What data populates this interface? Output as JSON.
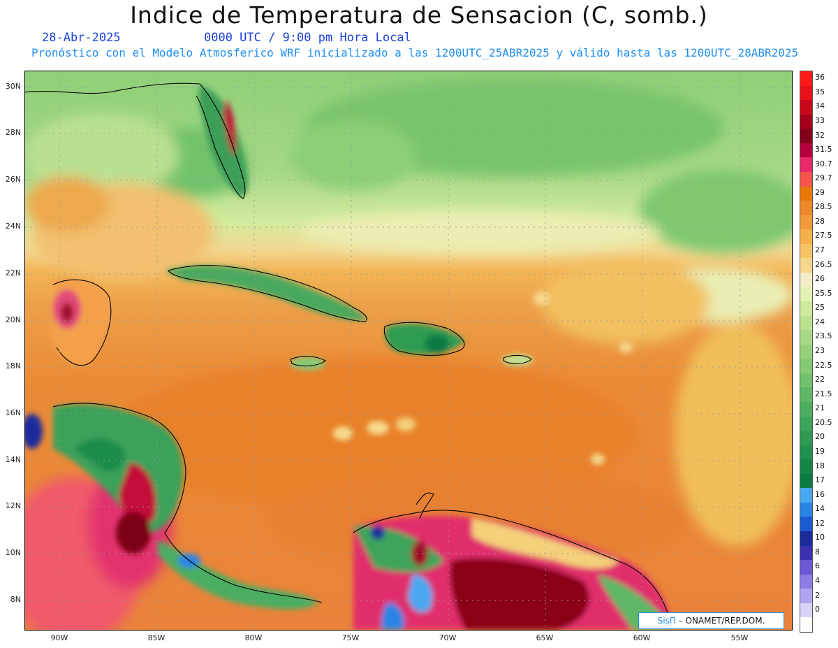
{
  "header": {
    "title": "Indice de Temperatura de Sensacion (C, somb.)",
    "date": "28-Abr-2025",
    "time": "0000 UTC / 9:00 pm Hora Local",
    "subtitle": "Pronóstico con el Modelo Atmosferico WRF inicializado a las 1200UTC_25ABR2025 y válido hasta las  1200UTC_28ABR2025"
  },
  "map": {
    "lat_labels": [
      "30N",
      "28N",
      "26N",
      "24N",
      "22N",
      "20N",
      "18N",
      "16N",
      "14N",
      "12N",
      "10N",
      "8N"
    ],
    "lon_labels": [
      "90W",
      "85W",
      "80W",
      "75W",
      "70W",
      "65W",
      "60W",
      "55W"
    ],
    "palette": {
      "ocean_warm": "#e9883a",
      "ocean_mid": "#f0a24c",
      "cool_north": "#9ed47a",
      "green_dark": "#2e9c52",
      "hot_pink": "#e8327a",
      "hot_red": "#9a0a1e",
      "yellow": "#f6e6a0"
    }
  },
  "colorbar": {
    "levels": [
      {
        "label": "36",
        "color": "#ff1a1a"
      },
      {
        "label": "35",
        "color": "#e8121a"
      },
      {
        "label": "34",
        "color": "#c8081a"
      },
      {
        "label": "33",
        "color": "#a4001a"
      },
      {
        "label": "32",
        "color": "#84001a"
      },
      {
        "label": "31.5",
        "color": "#b4003c"
      },
      {
        "label": "30.7",
        "color": "#e82a6a"
      },
      {
        "label": "29.7",
        "color": "#f4544a"
      },
      {
        "label": "29",
        "color": "#e8780a"
      },
      {
        "label": "28.5",
        "color": "#ec882a"
      },
      {
        "label": "28",
        "color": "#f09a3c"
      },
      {
        "label": "27.5",
        "color": "#f4b04a"
      },
      {
        "label": "27",
        "color": "#f6c464"
      },
      {
        "label": "26.5",
        "color": "#f6d68c"
      },
      {
        "label": "26",
        "color": "#f4ecc4"
      },
      {
        "label": "25.5",
        "color": "#e4f2b4"
      },
      {
        "label": "25",
        "color": "#d0ea9c"
      },
      {
        "label": "24",
        "color": "#bce290"
      },
      {
        "label": "23.5",
        "color": "#a8da86"
      },
      {
        "label": "23",
        "color": "#96d27c"
      },
      {
        "label": "22.5",
        "color": "#84ca74"
      },
      {
        "label": "22",
        "color": "#72c26c"
      },
      {
        "label": "21.5",
        "color": "#60b866"
      },
      {
        "label": "21",
        "color": "#4eae60"
      },
      {
        "label": "20.5",
        "color": "#3ea45a"
      },
      {
        "label": "20",
        "color": "#309a54"
      },
      {
        "label": "19",
        "color": "#22904e"
      },
      {
        "label": "18",
        "color": "#168648"
      },
      {
        "label": "17",
        "color": "#0c7c42"
      },
      {
        "label": "16",
        "color": "#4aa8f0"
      },
      {
        "label": "14",
        "color": "#2a84e4"
      },
      {
        "label": "12",
        "color": "#1a5cd0"
      },
      {
        "label": "10",
        "color": "#1a2c9c"
      },
      {
        "label": "8",
        "color": "#3a30b0"
      },
      {
        "label": "6",
        "color": "#6a58d4"
      },
      {
        "label": "4",
        "color": "#8c7ce4"
      },
      {
        "label": "2",
        "color": "#b0a4f0"
      },
      {
        "label": "0",
        "color": "#d8d4f8"
      },
      {
        "label": "",
        "color": "#ffffff"
      }
    ]
  },
  "credit": {
    "logo": "SisΠ",
    "text": "– ONAMET/REP.DOM."
  }
}
